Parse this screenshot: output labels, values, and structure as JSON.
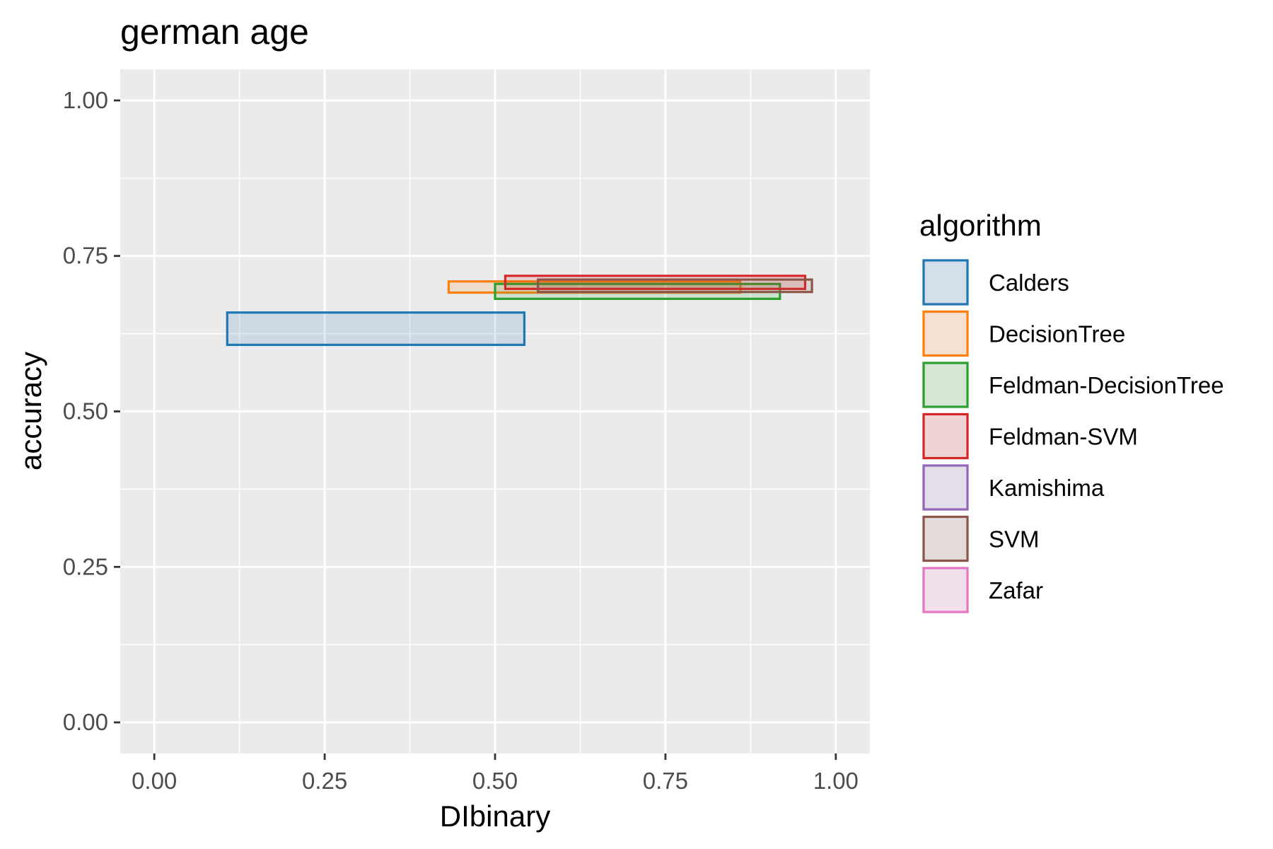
{
  "chart_data": {
    "type": "rect",
    "title": "german age",
    "xlabel": "DIbinary",
    "ylabel": "accuracy",
    "xlim": [
      -0.05,
      1.05
    ],
    "ylim": [
      -0.05,
      1.05
    ],
    "x_ticks": [
      0,
      0.25,
      0.5,
      0.75,
      1
    ],
    "x_tick_labels": [
      "0.00",
      "0.25",
      "0.50",
      "0.75",
      "1.00"
    ],
    "y_ticks": [
      0,
      0.25,
      0.5,
      0.75,
      1
    ],
    "y_tick_labels": [
      "0.00",
      "0.25",
      "0.50",
      "0.75",
      "1.00"
    ],
    "grid": true,
    "legend": {
      "title": "algorithm",
      "position": "right"
    },
    "series": [
      {
        "name": "Calders",
        "color": "#1f77b4",
        "xmin": 0.107,
        "xmax": 0.543,
        "ymin": 0.607,
        "ymax": 0.659
      },
      {
        "name": "DecisionTree",
        "color": "#ff7f0e",
        "xmin": 0.432,
        "xmax": 0.86,
        "ymin": 0.691,
        "ymax": 0.709
      },
      {
        "name": "Feldman-DecisionTree",
        "color": "#2ca02c",
        "xmin": 0.5,
        "xmax": 0.918,
        "ymin": 0.681,
        "ymax": 0.705
      },
      {
        "name": "Feldman-SVM",
        "color": "#d62728",
        "xmin": 0.515,
        "xmax": 0.955,
        "ymin": 0.697,
        "ymax": 0.718
      },
      {
        "name": "Kamishima",
        "color": "#9467bd",
        "xmin": null,
        "xmax": null,
        "ymin": null,
        "ymax": null
      },
      {
        "name": "SVM",
        "color": "#8c564b",
        "xmin": 0.563,
        "xmax": 0.965,
        "ymin": 0.692,
        "ymax": 0.712
      },
      {
        "name": "Zafar",
        "color": "#e377c2",
        "xmin": null,
        "xmax": null,
        "ymin": null,
        "ymax": null
      }
    ]
  }
}
